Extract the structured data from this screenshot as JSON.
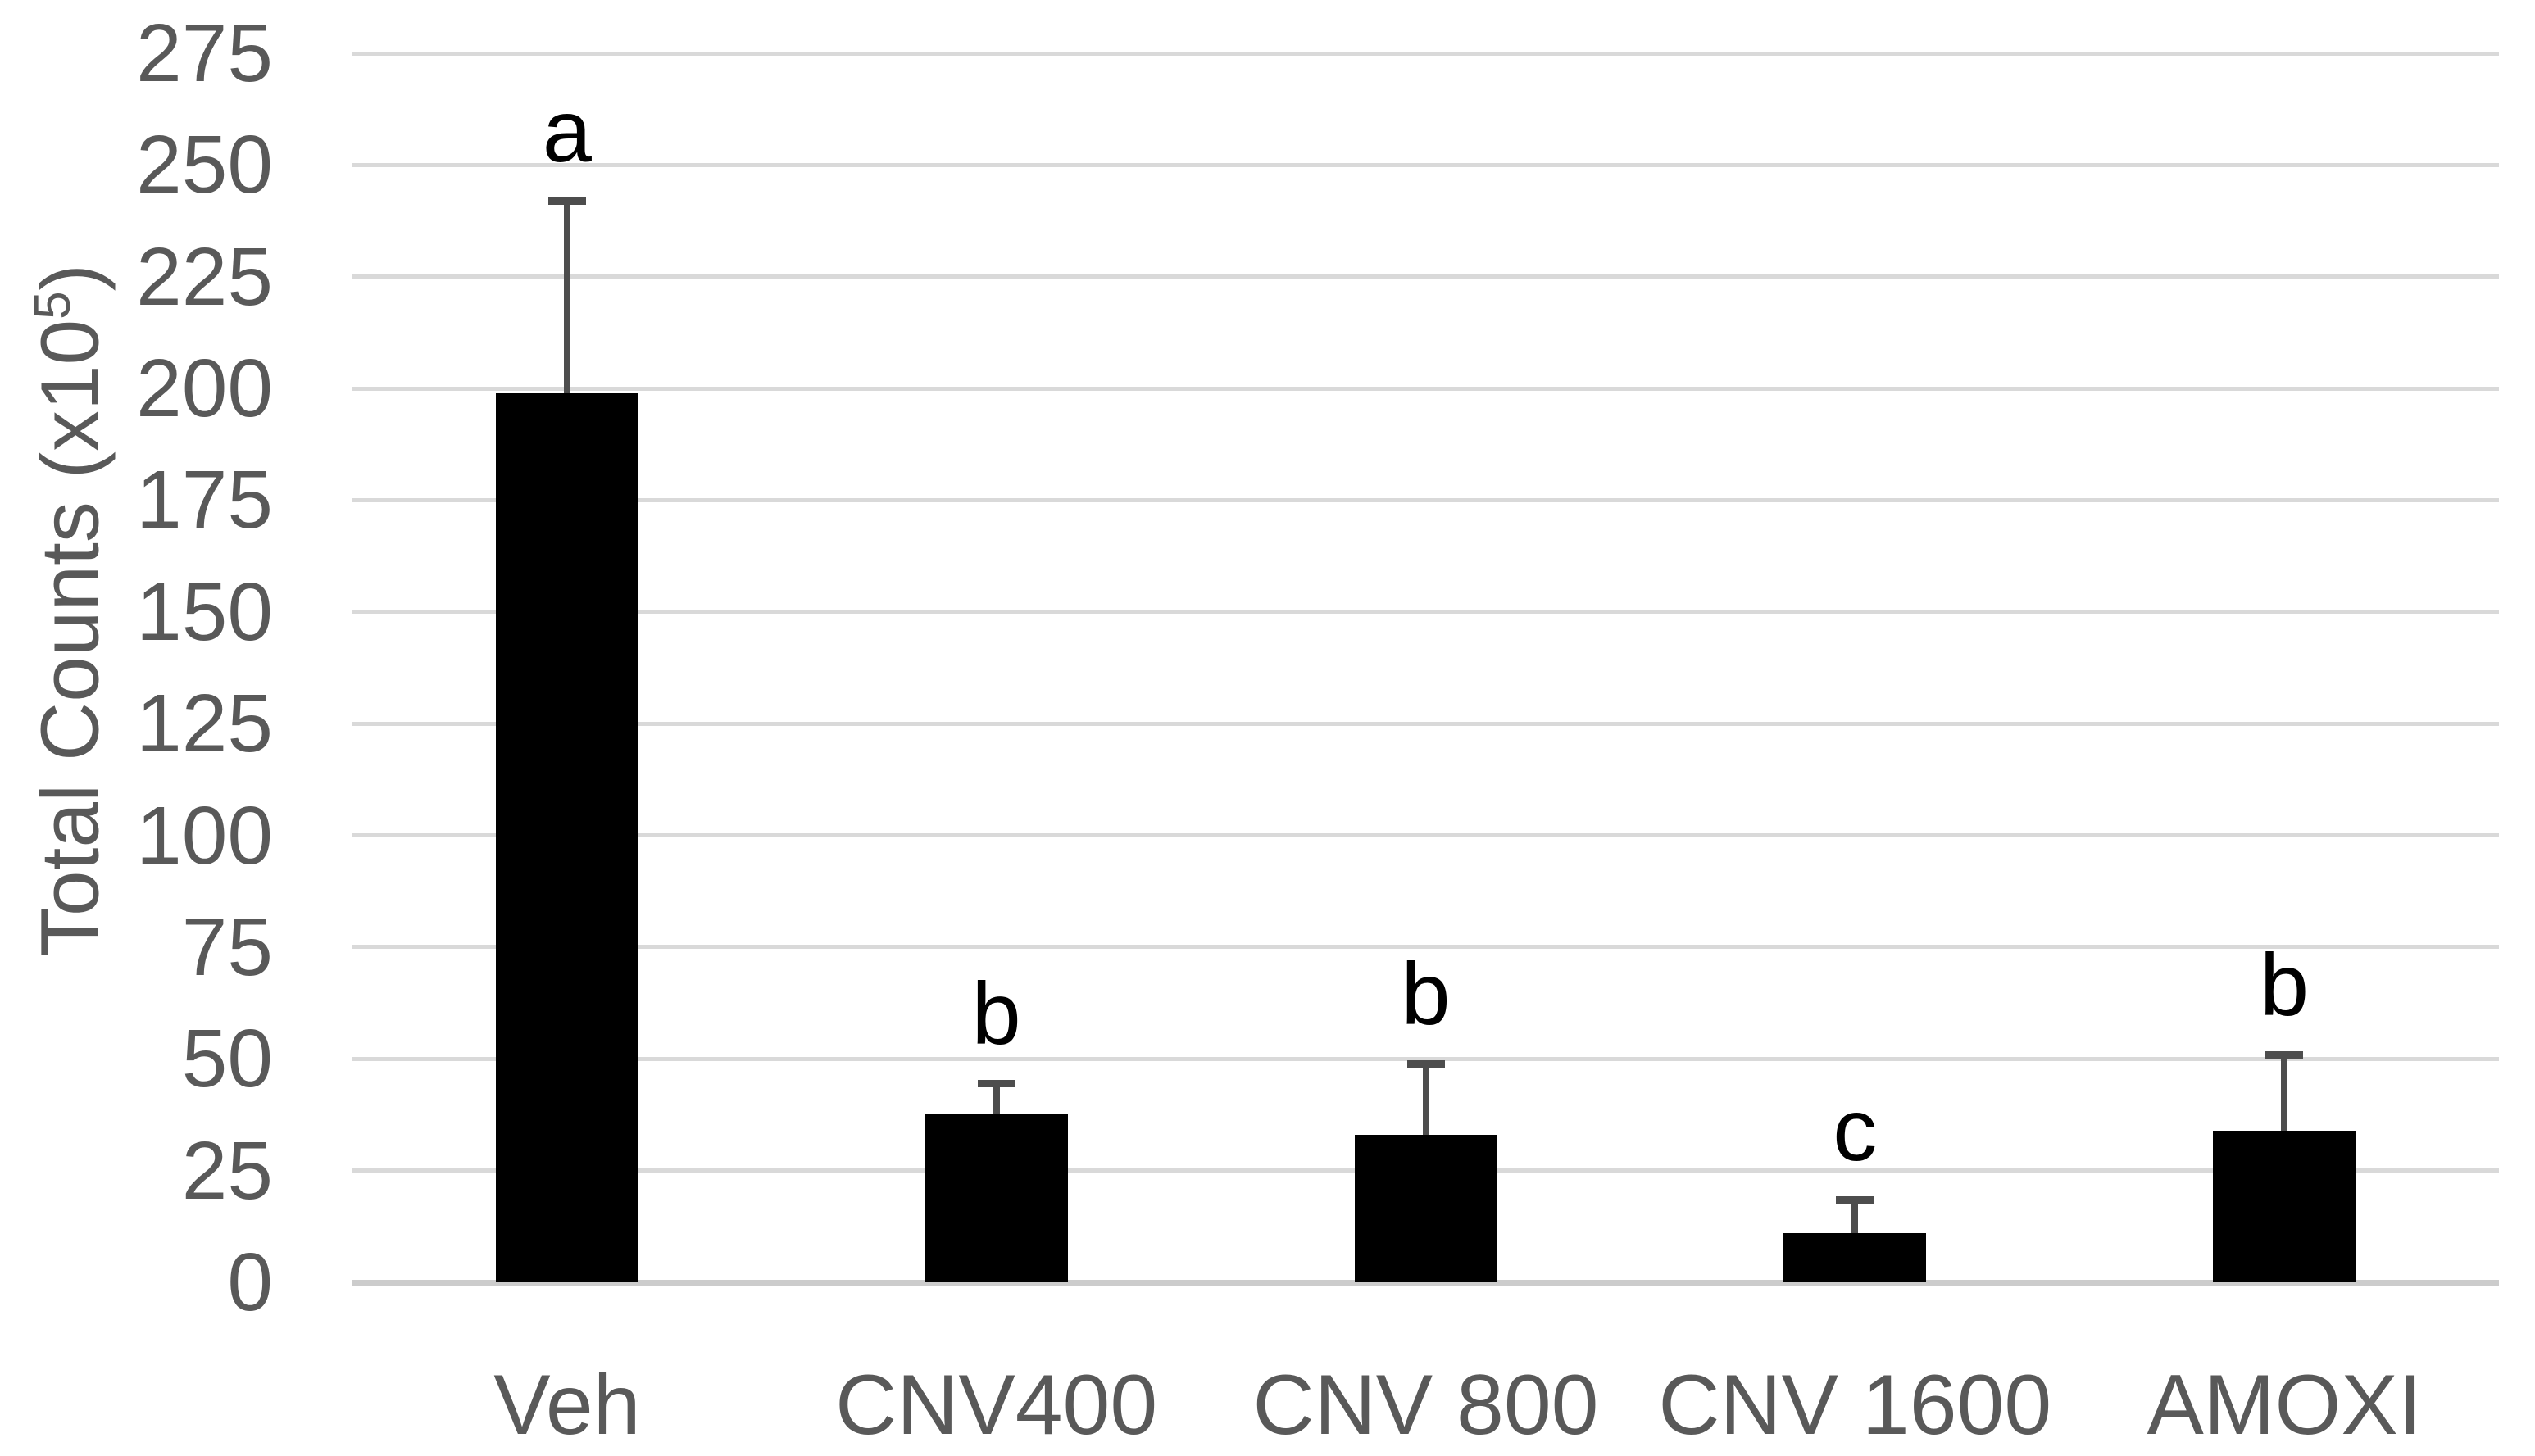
{
  "chart_data": {
    "type": "bar",
    "title": "",
    "ylabel": "Total Counts (x10^5)",
    "ylabel_parts": {
      "prefix": "Total Counts (x10",
      "superscript": "5",
      "suffix": ")"
    },
    "xlabel": "",
    "categories": [
      "Veh",
      "CNV400",
      "CNV 800",
      "CNV 1600",
      "AMOXI"
    ],
    "values": [
      199,
      37.5,
      33,
      11,
      34
    ],
    "error_up": [
      43,
      7,
      16,
      7.5,
      17
    ],
    "sig_letters": [
      "a",
      "b",
      "b",
      "c",
      "b"
    ],
    "ylim": [
      0,
      275
    ],
    "yticks": [
      0,
      25,
      50,
      75,
      100,
      125,
      150,
      175,
      200,
      225,
      250,
      275
    ],
    "grid": true,
    "legend": false,
    "bar_color": "#000000",
    "error_bar_color": "#4d4d4d",
    "gridline_color": "#d9d9d9",
    "axis_line_color": "#cccccc",
    "tick_text_color": "#595959",
    "sig_letter_color": "#000000",
    "background_color": "#ffffff"
  }
}
